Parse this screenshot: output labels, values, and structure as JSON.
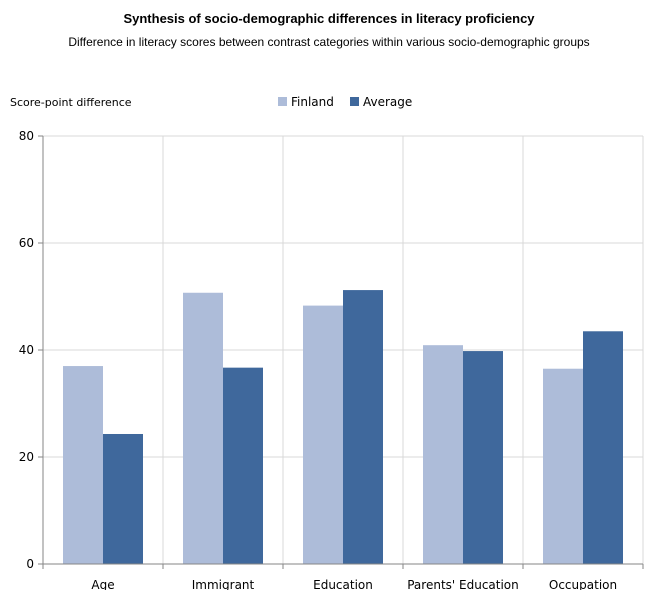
{
  "chart_data": {
    "type": "bar",
    "title": "Synthesis of socio-demographic differences in literacy proficiency",
    "subtitle": "Difference in literacy scores between contrast categories within various socio-demographic groups",
    "ylabel": "Score-point difference",
    "xlabel": "",
    "ylim": [
      0,
      80
    ],
    "yticks": [
      0,
      20,
      40,
      60,
      80
    ],
    "grid": true,
    "legend_position": "top",
    "categories": [
      "Age",
      "Immigrant",
      "Education",
      "Parents' Education",
      "Occupation"
    ],
    "series": [
      {
        "name": "Finland",
        "color": "#adbcd9",
        "values": [
          37,
          50.7,
          48.3,
          40.9,
          36.5
        ]
      },
      {
        "name": "Average",
        "color": "#3f689c",
        "values": [
          24.3,
          36.7,
          51.2,
          39.8,
          43.5
        ]
      }
    ]
  }
}
